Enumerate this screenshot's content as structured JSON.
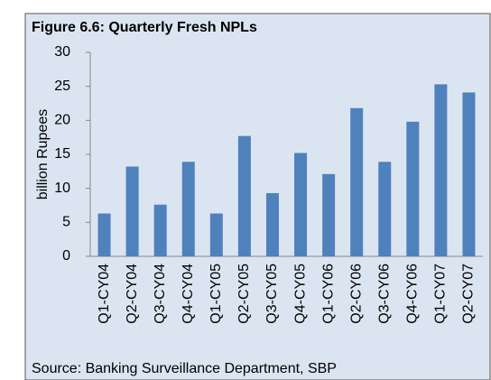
{
  "chart_data": {
    "type": "bar",
    "title": "Figure 6.6: Quarterly Fresh NPLs",
    "y_label": "billion Rupees",
    "source": "Source: Banking Surveillance Department, SBP",
    "categories": [
      "Q1-CY04",
      "Q2-CY04",
      "Q3-CY04",
      "Q4-CY04",
      "Q1-CY05",
      "Q2-CY05",
      "Q3-CY05",
      "Q4-CY05",
      "Q1-CY06",
      "Q2-CY06",
      "Q3-CY06",
      "Q4-CY06",
      "Q1-CY07",
      "Q2-CY07"
    ],
    "values": [
      6.3,
      13.2,
      7.6,
      13.9,
      6.3,
      17.7,
      9.3,
      15.2,
      12.1,
      21.8,
      13.9,
      19.8,
      25.3,
      24.1
    ],
    "color": "#4f81bd",
    "ylim": [
      0,
      30
    ],
    "yticks": [
      0,
      5,
      10,
      15,
      20,
      25,
      30
    ],
    "grid": false
  }
}
